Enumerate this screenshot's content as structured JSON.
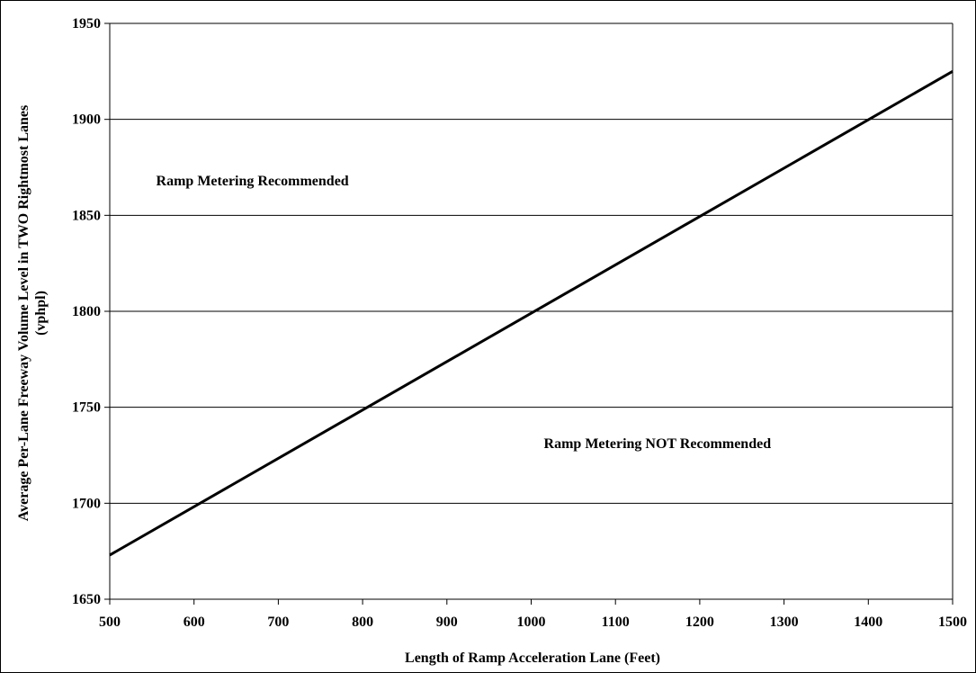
{
  "chart_data": {
    "type": "line",
    "title": "",
    "xlabel": "Length of Ramp Acceleration Lane (Feet)",
    "ylabel_line1": "Average Per-Lane Freeway Volume Level in TWO Rightmost Lanes",
    "ylabel_line2": "(vphpl)",
    "xlim": [
      500,
      1500
    ],
    "ylim": [
      1650,
      1950
    ],
    "x_ticks": [
      500,
      600,
      700,
      800,
      900,
      1000,
      1100,
      1200,
      1300,
      1400,
      1500
    ],
    "y_ticks": [
      1650,
      1700,
      1750,
      1800,
      1850,
      1900,
      1950
    ],
    "grid": "horizontal",
    "series": [
      {
        "x": [
          500,
          1500
        ],
        "y": [
          1673,
          1925
        ]
      }
    ],
    "annotations": [
      {
        "text": "Ramp Metering Recommended",
        "x": 555,
        "y": 1868
      },
      {
        "text": "Ramp Metering NOT Recommended",
        "x": 1015,
        "y": 1731
      }
    ]
  }
}
